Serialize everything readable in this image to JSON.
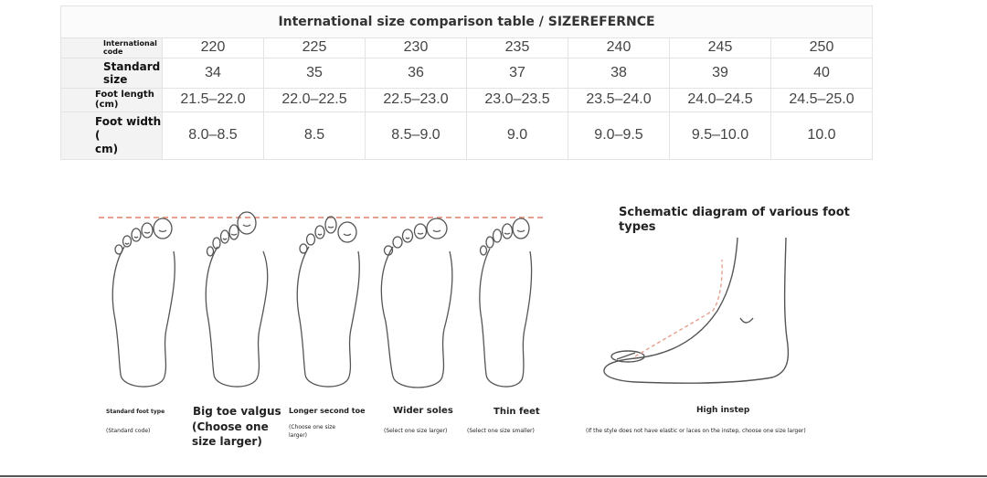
{
  "table": {
    "title": "International size comparison table / SIZEREFERNCE",
    "rows": [
      {
        "label": "International code",
        "values": [
          "220",
          "225",
          "230",
          "235",
          "240",
          "245",
          "250"
        ]
      },
      {
        "label": "Standard size",
        "values": [
          "34",
          "35",
          "36",
          "37",
          "38",
          "39",
          "40"
        ]
      },
      {
        "label": "Foot length (cm)",
        "values": [
          "21.5–22.0",
          "22.0–22.5",
          "22.5–23.0",
          "23.0–23.5",
          "23.5–24.0",
          "24.0–24.5",
          "24.5–25.0"
        ]
      },
      {
        "label_line1": "Foot width (",
        "label_line2": "cm)",
        "values": [
          "8.0–8.5",
          "8.5",
          "8.5–9.0",
          "9.0",
          "9.0–9.5",
          "9.5–10.0",
          "10.0"
        ]
      }
    ]
  },
  "feet": [
    {
      "title": "Standard foot type",
      "note": "(Standard code)"
    },
    {
      "title": "Big toe valgus",
      "note": "(Choose one size larger)"
    },
    {
      "title": "Longer second toe",
      "note": "(Choose one size larger)"
    },
    {
      "title": "Wider soles",
      "note": "(Select one size larger)"
    },
    {
      "title": "Thin feet",
      "note": "(Select one size smaller)"
    }
  ],
  "schematic": {
    "title": "Schematic diagram of various foot types",
    "label": "High instep",
    "note": "(If the style does not have elastic or laces on the instep, choose one size larger)"
  },
  "colors": {
    "guide_line": "#e6a08e",
    "outline": "#555555"
  }
}
